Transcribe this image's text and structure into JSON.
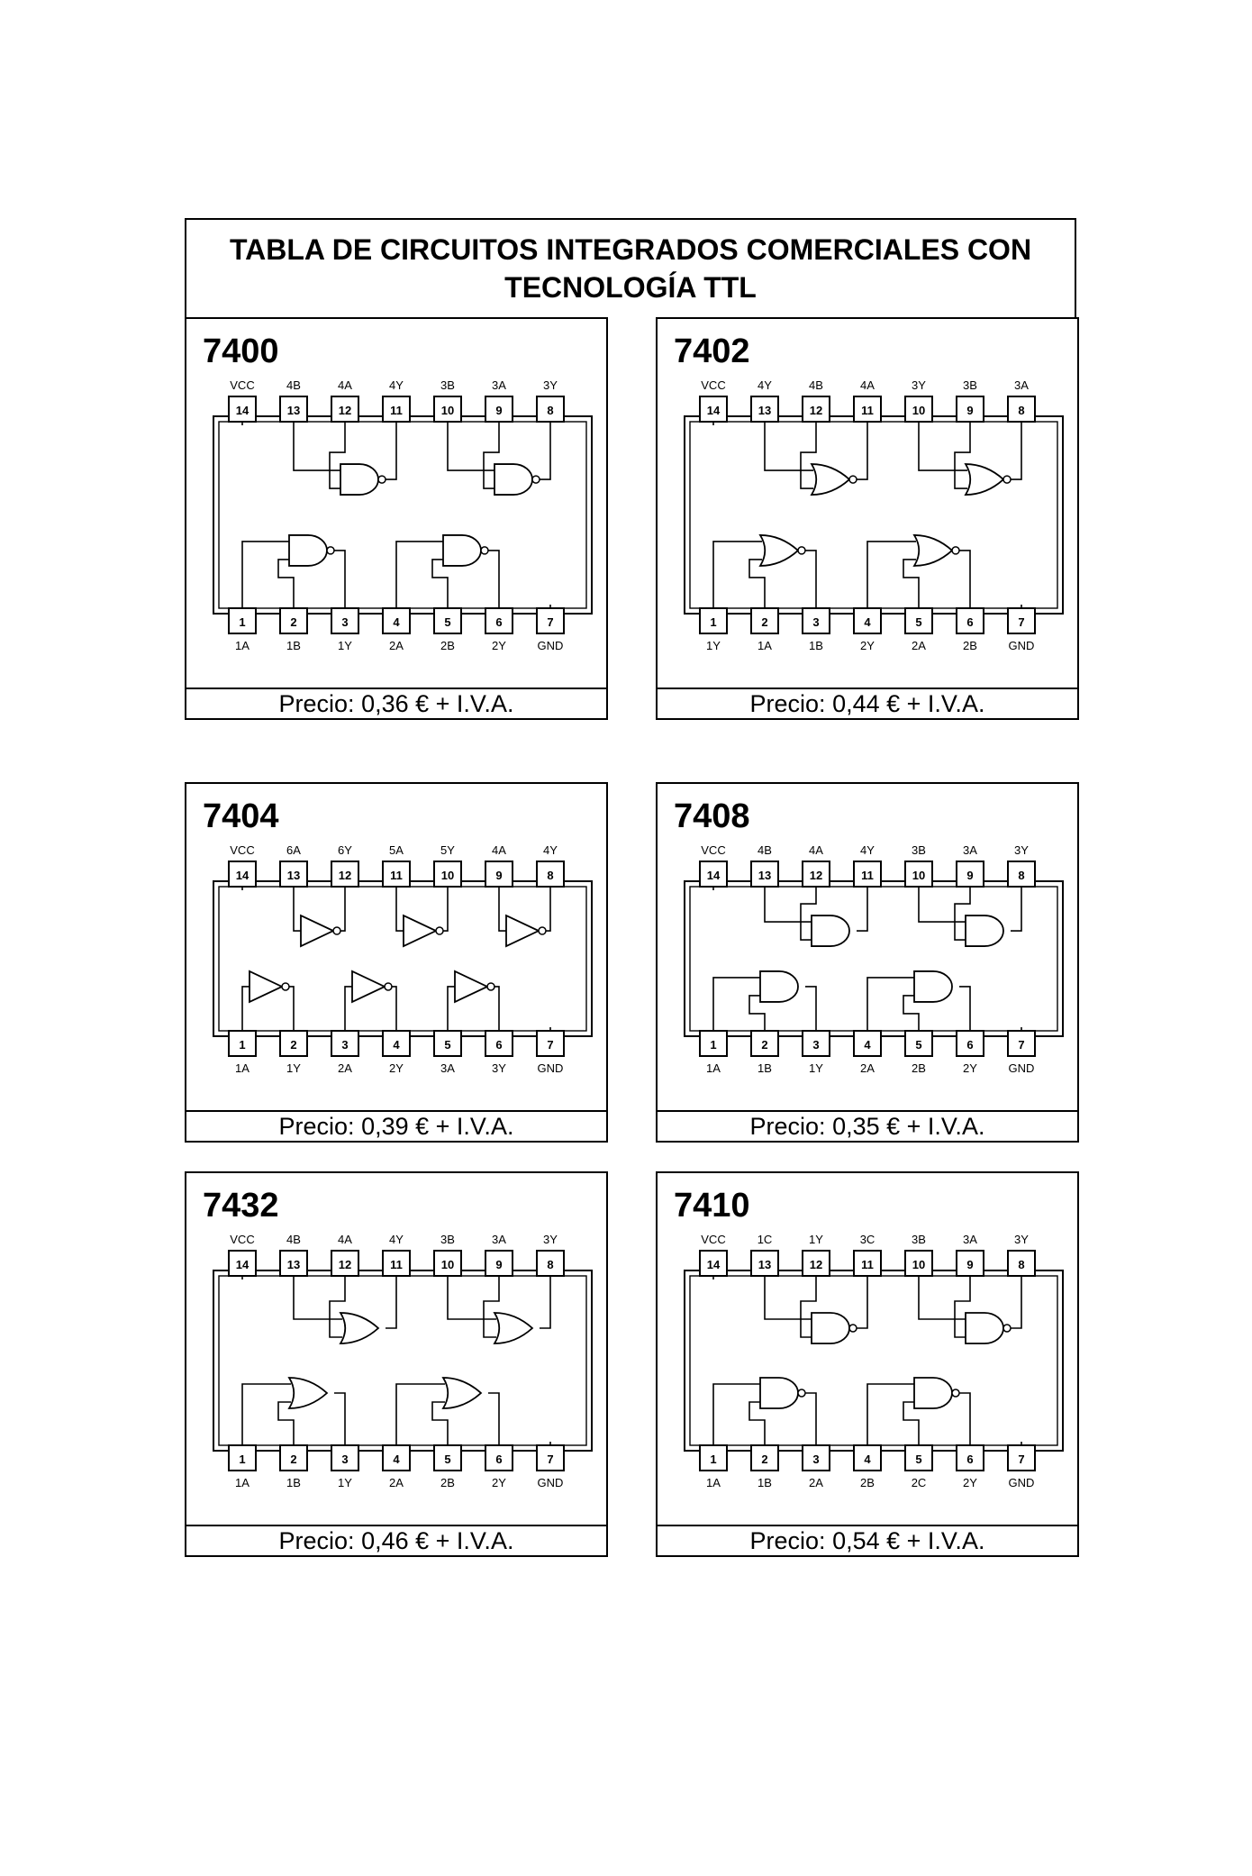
{
  "title": "TABLA DE CIRCUITOS INTEGRADOS COMERCIALES CON TECNOLOGÍA TTL",
  "chips": [
    {
      "id": "7400",
      "number": "7400",
      "price": "Precio: 0,36 € + I.V.A.",
      "top_labels": [
        "VCC",
        "4B",
        "4A",
        "4Y",
        "3B",
        "3A",
        "3Y"
      ],
      "top_pins": [
        "14",
        "13",
        "12",
        "11",
        "10",
        "9",
        "8"
      ],
      "bottom_labels": [
        "1A",
        "1B",
        "1Y",
        "2A",
        "2B",
        "2Y",
        "GND"
      ],
      "bottom_pins": [
        "1",
        "2",
        "3",
        "4",
        "5",
        "6",
        "7"
      ],
      "gate": "nand"
    },
    {
      "id": "7402",
      "number": "7402",
      "price": "Precio: 0,44 € + I.V.A.",
      "top_labels": [
        "VCC",
        "4Y",
        "4B",
        "4A",
        "3Y",
        "3B",
        "3A"
      ],
      "top_pins": [
        "14",
        "13",
        "12",
        "11",
        "10",
        "9",
        "8"
      ],
      "bottom_labels": [
        "1Y",
        "1A",
        "1B",
        "2Y",
        "2A",
        "2B",
        "GND"
      ],
      "bottom_pins": [
        "1",
        "2",
        "3",
        "4",
        "5",
        "6",
        "7"
      ],
      "gate": "nor"
    },
    {
      "id": "7404",
      "number": "7404",
      "price": "Precio: 0,39 € + I.V.A.",
      "top_labels": [
        "VCC",
        "6A",
        "6Y",
        "5A",
        "5Y",
        "4A",
        "4Y"
      ],
      "top_pins": [
        "14",
        "13",
        "12",
        "11",
        "10",
        "9",
        "8"
      ],
      "bottom_labels": [
        "1A",
        "1Y",
        "2A",
        "2Y",
        "3A",
        "3Y",
        "GND"
      ],
      "bottom_pins": [
        "1",
        "2",
        "3",
        "4",
        "5",
        "6",
        "7"
      ],
      "gate": "not"
    },
    {
      "id": "7408",
      "number": "7408",
      "price": "Precio: 0,35 € + I.V.A.",
      "top_labels": [
        "VCC",
        "4B",
        "4A",
        "4Y",
        "3B",
        "3A",
        "3Y"
      ],
      "top_pins": [
        "14",
        "13",
        "12",
        "11",
        "10",
        "9",
        "8"
      ],
      "bottom_labels": [
        "1A",
        "1B",
        "1Y",
        "2A",
        "2B",
        "2Y",
        "GND"
      ],
      "bottom_pins": [
        "1",
        "2",
        "3",
        "4",
        "5",
        "6",
        "7"
      ],
      "gate": "and"
    },
    {
      "id": "7432",
      "number": "7432",
      "price": "Precio: 0,46 € + I.V.A.",
      "top_labels": [
        "VCC",
        "4B",
        "4A",
        "4Y",
        "3B",
        "3A",
        "3Y"
      ],
      "top_pins": [
        "14",
        "13",
        "12",
        "11",
        "10",
        "9",
        "8"
      ],
      "bottom_labels": [
        "1A",
        "1B",
        "1Y",
        "2A",
        "2B",
        "2Y",
        "GND"
      ],
      "bottom_pins": [
        "1",
        "2",
        "3",
        "4",
        "5",
        "6",
        "7"
      ],
      "gate": "or"
    },
    {
      "id": "7410",
      "number": "7410",
      "price": "Precio: 0,54 € + I.V.A.",
      "top_labels": [
        "VCC",
        "1C",
        "1Y",
        "3C",
        "3B",
        "3A",
        "3Y"
      ],
      "top_pins": [
        "14",
        "13",
        "12",
        "11",
        "10",
        "9",
        "8"
      ],
      "bottom_labels": [
        "1A",
        "1B",
        "2A",
        "2B",
        "2C",
        "2Y",
        "GND"
      ],
      "bottom_pins": [
        "1",
        "2",
        "3",
        "4",
        "5",
        "6",
        "7"
      ],
      "gate": "nand3"
    }
  ]
}
